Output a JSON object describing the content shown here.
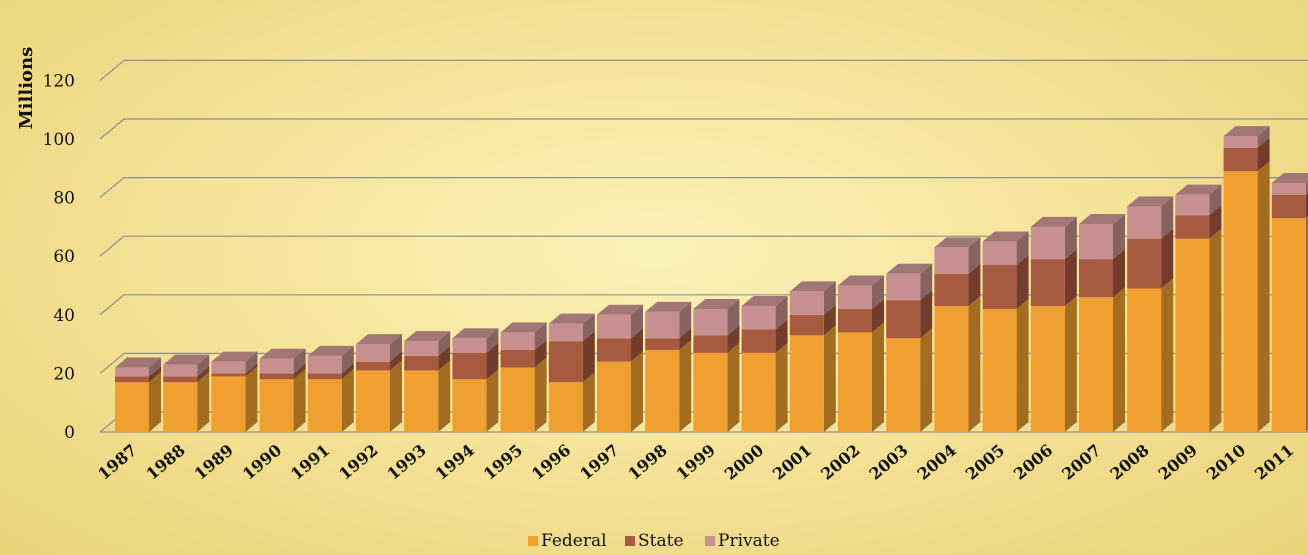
{
  "chart_data": {
    "type": "bar",
    "stacked": true,
    "title": "",
    "xlabel": "",
    "ylabel": "Millions",
    "ylim": [
      0,
      120
    ],
    "yticks": [
      0,
      20,
      40,
      60,
      80,
      100,
      120
    ],
    "grid": true,
    "legend_position": "bottom",
    "categories": [
      "1987",
      "1988",
      "1989",
      "1990",
      "1991",
      "1992",
      "1993",
      "1994",
      "1995",
      "1996",
      "1997",
      "1998",
      "1999",
      "2000",
      "2001",
      "2002",
      "2003",
      "2004",
      "2005",
      "2006",
      "2007",
      "2008",
      "2009",
      "2010",
      "2011"
    ],
    "series": [
      {
        "name": "Federal",
        "color": "#f0a030",
        "values": [
          17,
          17,
          19,
          18,
          18,
          21,
          21,
          18,
          22,
          17,
          24,
          28,
          27,
          27,
          33,
          34,
          32,
          43,
          42,
          43,
          46,
          49,
          66,
          89,
          73
        ]
      },
      {
        "name": "State",
        "color": "#a85a40",
        "values": [
          2,
          2,
          1,
          2,
          2,
          3,
          5,
          9,
          6,
          14,
          8,
          4,
          6,
          8,
          7,
          8,
          13,
          11,
          15,
          16,
          13,
          17,
          8,
          8,
          8
        ]
      },
      {
        "name": "Private",
        "color": "#c79090",
        "values": [
          3,
          4,
          4,
          5,
          6,
          6,
          5,
          5,
          6,
          6,
          8,
          9,
          9,
          8,
          8,
          8,
          9,
          9,
          8,
          11,
          12,
          11,
          7,
          4,
          4
        ]
      }
    ]
  }
}
